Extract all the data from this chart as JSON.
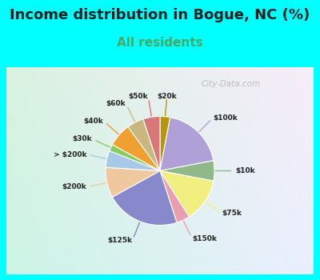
{
  "title": "Income distribution in Bogue, NC (%)",
  "subtitle": "All residents",
  "watermark": "© City-Data.com",
  "background_outer": "#00FFFF",
  "background_inner_tl": "#d8f0e0",
  "background_inner_br": "#e8f8f8",
  "labels": [
    "$20k",
    "$100k",
    "$10k",
    "$75k",
    "$150k",
    "$125k",
    "$200k",
    "> $200k",
    "$30k",
    "$40k",
    "$60k",
    "$50k"
  ],
  "values": [
    3,
    19,
    6,
    13,
    4,
    22,
    9,
    5,
    2,
    7,
    5,
    5
  ],
  "colors": [
    "#b8960a",
    "#b0a0d8",
    "#90b888",
    "#f0ef80",
    "#e8a0b0",
    "#8888cc",
    "#f0c8a0",
    "#a8c8e8",
    "#88cc60",
    "#f0a030",
    "#c8b880",
    "#d87878"
  ],
  "title_fontsize": 13,
  "subtitle_fontsize": 11,
  "title_color": "#222222",
  "subtitle_color": "#44aa66"
}
